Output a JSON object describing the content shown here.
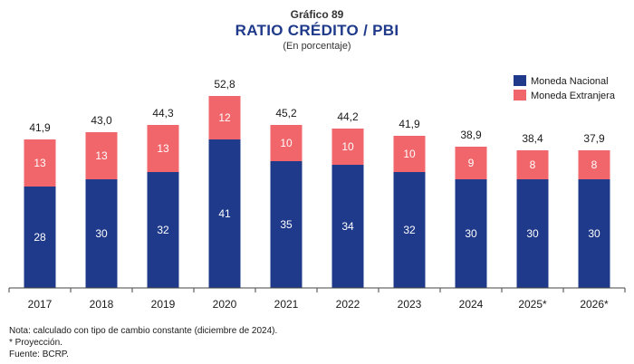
{
  "header": {
    "chart_number": "Gráfico 89",
    "title": "RATIO CRÉDITO / PBI",
    "subtitle": "(En porcentaje)"
  },
  "notes": {
    "note": "Nota: calculado con tipo de cambio constante (diciembre de 2024).",
    "projection": "* Proyección.",
    "source": "Fuente: BCRP."
  },
  "colors": {
    "moneda_nacional": "#1f3a8a",
    "moneda_extranjera": "#f0666b",
    "title": "#1f3a8a"
  },
  "chart_data": {
    "type": "bar",
    "stacked": true,
    "categories": [
      "2017",
      "2018",
      "2019",
      "2020",
      "2021",
      "2022",
      "2023",
      "2024",
      "2025*",
      "2026*"
    ],
    "series": [
      {
        "name": "Moneda Nacional",
        "values": [
          28,
          30,
          32,
          41,
          35,
          34,
          32,
          30,
          30,
          30
        ],
        "value_labels": [
          "28",
          "30",
          "32",
          "41",
          "35",
          "34",
          "32",
          "30",
          "30",
          "30"
        ]
      },
      {
        "name": "Moneda Extranjera",
        "values": [
          13,
          13,
          13,
          12,
          10,
          10,
          10,
          9,
          8,
          8
        ],
        "value_labels": [
          "13",
          "13",
          "13",
          "12",
          "10",
          "10",
          "10",
          "9",
          "8",
          "8"
        ]
      }
    ],
    "totals": [
      41.9,
      43.0,
      44.3,
      52.8,
      45.2,
      44.2,
      41.9,
      38.9,
      38.4,
      37.9
    ],
    "total_labels": [
      "41,9",
      "43,0",
      "44,3",
      "52,8",
      "45,2",
      "44,2",
      "41,9",
      "38,9",
      "38,4",
      "37,9"
    ],
    "ylim": [
      0,
      60
    ],
    "grid": false,
    "legend_position": "top-right"
  }
}
